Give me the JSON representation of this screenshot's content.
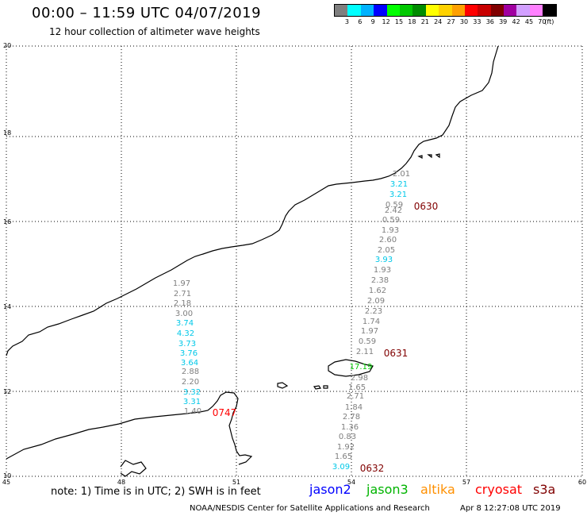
{
  "header": {
    "title": "00:00 – 11:59 UTC 04/07/2019",
    "subtitle": "12 hour collection of altimeter wave heights"
  },
  "legend": {
    "colors": [
      "#7f7f7f",
      "#00ffff",
      "#00b2ff",
      "#0000ff",
      "#00ff00",
      "#00c800",
      "#008c00",
      "#ffff00",
      "#ffd200",
      "#ffa000",
      "#ff0000",
      "#c80000",
      "#800000",
      "#a000a0",
      "#d2a0ff",
      "#ff80ff",
      "#000000"
    ],
    "labels": [
      "3",
      "6",
      "9",
      "12",
      "15",
      "18",
      "21",
      "24",
      "27",
      "30",
      "33",
      "36",
      "39",
      "42",
      "45",
      "70",
      "(ft)"
    ]
  },
  "map": {
    "lat_labels": [
      "20",
      "18",
      "16",
      "14",
      "12",
      "10"
    ],
    "lon_labels": [
      "45",
      "48",
      "51",
      "54",
      "57",
      "60"
    ],
    "pass_times": [
      {
        "text": "0630",
        "color": "#800000"
      },
      {
        "text": "0631",
        "color": "#800000"
      },
      {
        "text": "0632",
        "color": "#800000"
      },
      {
        "text": "0747",
        "color": "#ff0000"
      }
    ],
    "wave_labels": [
      {
        "text": "2.01",
        "color": "#7f7f7f"
      },
      {
        "text": "3.21",
        "color": "#00c8e8"
      },
      {
        "text": "3.21",
        "color": "#00c8e8"
      },
      {
        "text": "0.59",
        "color": "#7f7f7f"
      },
      {
        "text": "2.42",
        "color": "#7f7f7f"
      },
      {
        "text": "0.59",
        "color": "#7f7f7f"
      },
      {
        "text": "1.93",
        "color": "#7f7f7f"
      },
      {
        "text": "2.60",
        "color": "#7f7f7f"
      },
      {
        "text": "2.05",
        "color": "#7f7f7f"
      },
      {
        "text": "3.93",
        "color": "#00c8e8"
      },
      {
        "text": "1.93",
        "color": "#7f7f7f"
      },
      {
        "text": "2.38",
        "color": "#7f7f7f"
      },
      {
        "text": "1.62",
        "color": "#7f7f7f"
      },
      {
        "text": "2.09",
        "color": "#7f7f7f"
      },
      {
        "text": "2.23",
        "color": "#7f7f7f"
      },
      {
        "text": "1.74",
        "color": "#7f7f7f"
      },
      {
        "text": "1.97",
        "color": "#7f7f7f"
      },
      {
        "text": "0.59",
        "color": "#7f7f7f"
      },
      {
        "text": "2.11",
        "color": "#7f7f7f"
      },
      {
        "text": "17.19",
        "color": "#00c800"
      },
      {
        "text": "2.98",
        "color": "#7f7f7f"
      },
      {
        "text": "1.65",
        "color": "#7f7f7f"
      },
      {
        "text": "2.71",
        "color": "#7f7f7f"
      },
      {
        "text": "1.84",
        "color": "#7f7f7f"
      },
      {
        "text": "2.78",
        "color": "#7f7f7f"
      },
      {
        "text": "1.36",
        "color": "#7f7f7f"
      },
      {
        "text": "0.83",
        "color": "#7f7f7f"
      },
      {
        "text": "1.92",
        "color": "#7f7f7f"
      },
      {
        "text": "1.65",
        "color": "#7f7f7f"
      },
      {
        "text": "3.09",
        "color": "#00c8e8"
      },
      {
        "text": "1.97",
        "color": "#7f7f7f"
      },
      {
        "text": "2.71",
        "color": "#7f7f7f"
      },
      {
        "text": "2.18",
        "color": "#7f7f7f"
      },
      {
        "text": "3.00",
        "color": "#7f7f7f"
      },
      {
        "text": "3.74",
        "color": "#00c8e8"
      },
      {
        "text": "4.32",
        "color": "#00c8e8"
      },
      {
        "text": "3.73",
        "color": "#00c8e8"
      },
      {
        "text": "3.76",
        "color": "#00c8e8"
      },
      {
        "text": "3.64",
        "color": "#00c8e8"
      },
      {
        "text": "2.88",
        "color": "#7f7f7f"
      },
      {
        "text": "2.20",
        "color": "#7f7f7f"
      },
      {
        "text": "3.32",
        "color": "#00c8e8"
      },
      {
        "text": "3.31",
        "color": "#00c8e8"
      },
      {
        "text": "1.40",
        "color": "#7f7f7f"
      }
    ]
  },
  "footer": {
    "note": "note: 1) Time is in UTC; 2) SWH is in feet",
    "satellites": [
      {
        "text": "jason2",
        "color": "#0000ff"
      },
      {
        "text": "jason3",
        "color": "#00b400"
      },
      {
        "text": "altika",
        "color": "#ff9000"
      },
      {
        "text": "cryosat",
        "color": "#ff0000"
      },
      {
        "text": "s3a",
        "color": "#800000"
      }
    ],
    "credit": "NOAA/NESDIS Center for Satellite Applications and Research",
    "timestamp": "Apr  8 12:27:08 UTC 2019"
  }
}
